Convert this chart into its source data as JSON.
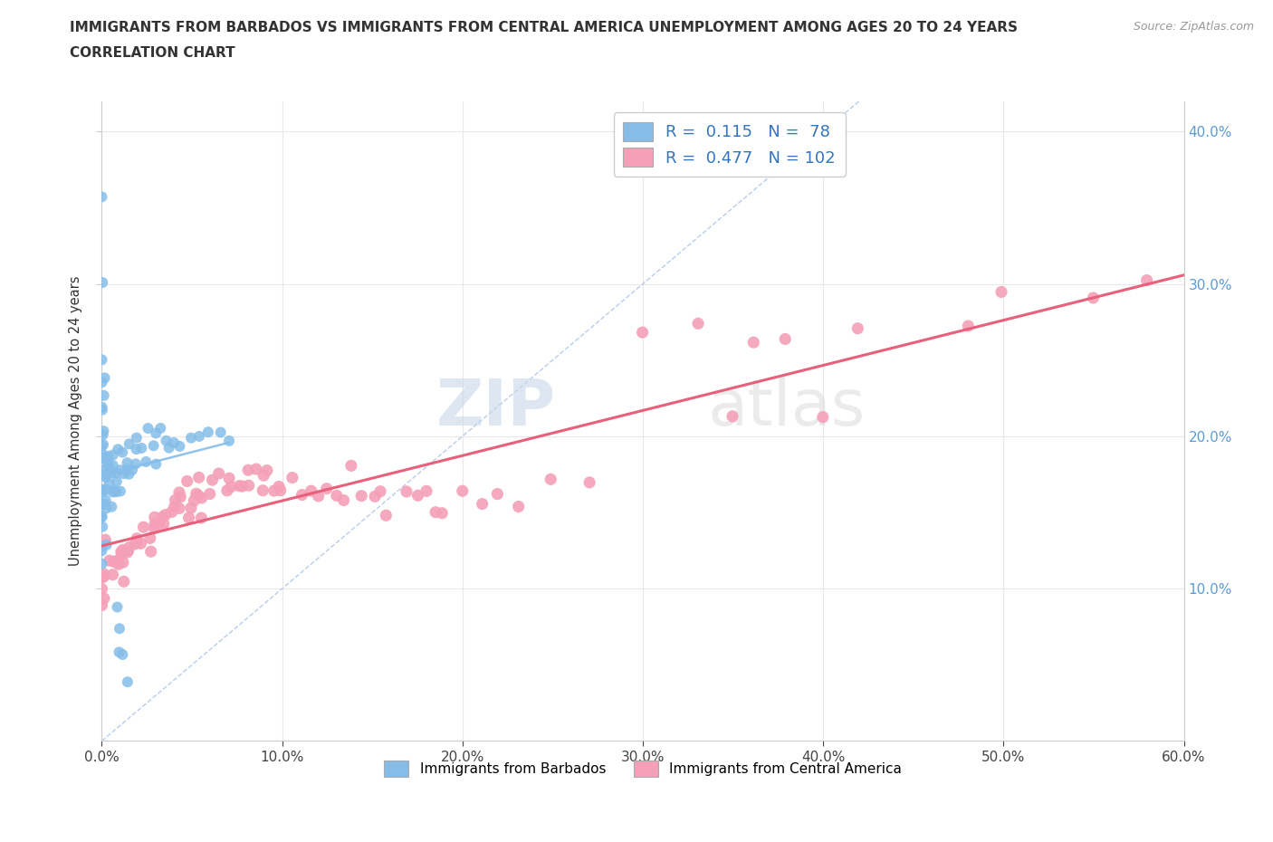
{
  "title_line1": "IMMIGRANTS FROM BARBADOS VS IMMIGRANTS FROM CENTRAL AMERICA UNEMPLOYMENT AMONG AGES 20 TO 24 YEARS",
  "title_line2": "CORRELATION CHART",
  "source_text": "Source: ZipAtlas.com",
  "ylabel": "Unemployment Among Ages 20 to 24 years",
  "xmin": 0.0,
  "xmax": 0.6,
  "ymin": 0.0,
  "ymax": 0.42,
  "xtick_values": [
    0.0,
    0.1,
    0.2,
    0.3,
    0.4,
    0.5,
    0.6
  ],
  "ytick_values": [
    0.1,
    0.2,
    0.3,
    0.4
  ],
  "barbados_color": "#85bde8",
  "central_america_color": "#f4a0b8",
  "barbados_R": 0.115,
  "barbados_N": 78,
  "central_america_R": 0.477,
  "central_america_N": 102,
  "diagonal_color": "#b0c8e8",
  "regression_color_ca": "#e8607a",
  "watermark_zip": "ZIP",
  "watermark_atlas": "atlas",
  "title_color": "#333333",
  "axis_label_color": "#333333",
  "tick_color": "#5b9bd5",
  "source_color": "#999999",
  "legend_text_color": "#3575c0",
  "grid_color": "#e8e8e8",
  "barbados_x": [
    0.0,
    0.0,
    0.0,
    0.0,
    0.0,
    0.0,
    0.0,
    0.0,
    0.0,
    0.0,
    0.0,
    0.0,
    0.0,
    0.0,
    0.0,
    0.0,
    0.0,
    0.0,
    0.0,
    0.0,
    0.0,
    0.0,
    0.0,
    0.0,
    0.0,
    0.0,
    0.002,
    0.002,
    0.003,
    0.003,
    0.003,
    0.004,
    0.004,
    0.005,
    0.005,
    0.005,
    0.006,
    0.006,
    0.007,
    0.007,
    0.008,
    0.008,
    0.009,
    0.009,
    0.01,
    0.01,
    0.01,
    0.012,
    0.012,
    0.013,
    0.014,
    0.015,
    0.015,
    0.016,
    0.018,
    0.02,
    0.02,
    0.022,
    0.025,
    0.025,
    0.028,
    0.03,
    0.03,
    0.032,
    0.035,
    0.038,
    0.04,
    0.045,
    0.05,
    0.055,
    0.06,
    0.065,
    0.07,
    0.008,
    0.009,
    0.01,
    0.012,
    0.015
  ],
  "barbados_y": [
    0.36,
    0.3,
    0.25,
    0.24,
    0.235,
    0.225,
    0.215,
    0.21,
    0.205,
    0.2,
    0.195,
    0.19,
    0.185,
    0.18,
    0.175,
    0.17,
    0.165,
    0.16,
    0.155,
    0.15,
    0.145,
    0.14,
    0.135,
    0.13,
    0.125,
    0.12,
    0.175,
    0.165,
    0.18,
    0.165,
    0.155,
    0.175,
    0.16,
    0.185,
    0.175,
    0.16,
    0.18,
    0.165,
    0.18,
    0.165,
    0.185,
    0.17,
    0.185,
    0.175,
    0.19,
    0.175,
    0.165,
    0.19,
    0.175,
    0.185,
    0.18,
    0.195,
    0.18,
    0.185,
    0.185,
    0.195,
    0.18,
    0.19,
    0.2,
    0.185,
    0.195,
    0.2,
    0.185,
    0.2,
    0.195,
    0.195,
    0.195,
    0.195,
    0.2,
    0.2,
    0.2,
    0.2,
    0.2,
    0.085,
    0.075,
    0.065,
    0.055,
    0.045
  ],
  "central_america_x": [
    0.0,
    0.0,
    0.0,
    0.0,
    0.0,
    0.002,
    0.003,
    0.004,
    0.005,
    0.006,
    0.007,
    0.008,
    0.009,
    0.01,
    0.01,
    0.01,
    0.011,
    0.012,
    0.013,
    0.015,
    0.015,
    0.016,
    0.018,
    0.02,
    0.02,
    0.022,
    0.024,
    0.025,
    0.026,
    0.028,
    0.03,
    0.03,
    0.032,
    0.034,
    0.035,
    0.036,
    0.038,
    0.04,
    0.04,
    0.042,
    0.044,
    0.045,
    0.046,
    0.048,
    0.05,
    0.05,
    0.052,
    0.054,
    0.055,
    0.056,
    0.058,
    0.06,
    0.062,
    0.065,
    0.068,
    0.07,
    0.072,
    0.075,
    0.078,
    0.08,
    0.082,
    0.085,
    0.088,
    0.09,
    0.092,
    0.095,
    0.1,
    0.1,
    0.105,
    0.11,
    0.115,
    0.12,
    0.125,
    0.13,
    0.135,
    0.14,
    0.145,
    0.15,
    0.155,
    0.16,
    0.17,
    0.175,
    0.18,
    0.185,
    0.19,
    0.2,
    0.21,
    0.22,
    0.23,
    0.25,
    0.27,
    0.3,
    0.33,
    0.35,
    0.36,
    0.38,
    0.4,
    0.42,
    0.48,
    0.5,
    0.55,
    0.58
  ],
  "central_america_y": [
    0.115,
    0.105,
    0.1,
    0.095,
    0.09,
    0.12,
    0.115,
    0.115,
    0.12,
    0.115,
    0.12,
    0.115,
    0.12,
    0.125,
    0.12,
    0.115,
    0.125,
    0.125,
    0.125,
    0.13,
    0.125,
    0.13,
    0.13,
    0.135,
    0.13,
    0.135,
    0.135,
    0.14,
    0.14,
    0.14,
    0.145,
    0.14,
    0.145,
    0.145,
    0.15,
    0.145,
    0.15,
    0.155,
    0.15,
    0.155,
    0.155,
    0.155,
    0.16,
    0.155,
    0.16,
    0.155,
    0.16,
    0.16,
    0.165,
    0.16,
    0.165,
    0.165,
    0.165,
    0.17,
    0.165,
    0.17,
    0.165,
    0.17,
    0.165,
    0.17,
    0.165,
    0.17,
    0.165,
    0.17,
    0.165,
    0.165,
    0.17,
    0.165,
    0.165,
    0.17,
    0.165,
    0.165,
    0.165,
    0.17,
    0.165,
    0.165,
    0.165,
    0.165,
    0.16,
    0.155,
    0.16,
    0.155,
    0.16,
    0.155,
    0.155,
    0.155,
    0.155,
    0.155,
    0.15,
    0.175,
    0.17,
    0.275,
    0.275,
    0.22,
    0.255,
    0.26,
    0.205,
    0.265,
    0.275,
    0.3,
    0.295,
    0.295
  ]
}
